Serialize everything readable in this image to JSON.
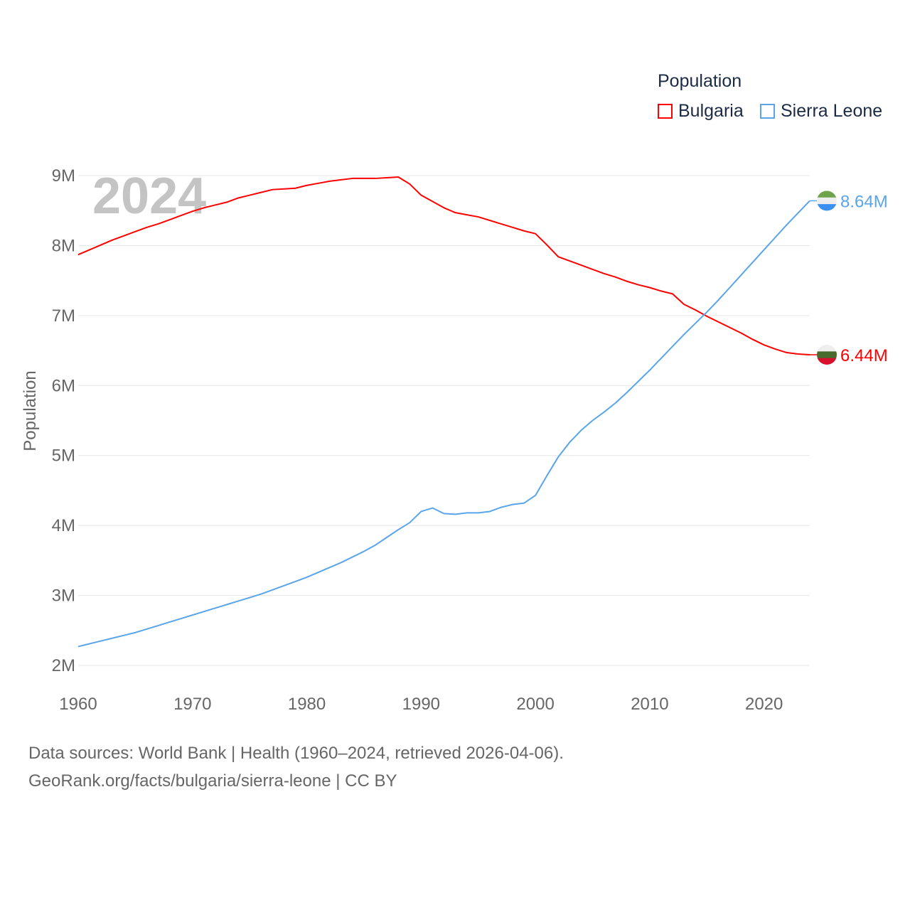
{
  "chart_data": {
    "type": "line",
    "title": "Population",
    "xlabel": "",
    "ylabel": "Population",
    "watermark_year": "2024",
    "xlim": [
      1960,
      2024
    ],
    "ylim": [
      2,
      9
    ],
    "y_unit": "millions",
    "x_ticks": [
      "1960",
      "1970",
      "1980",
      "1990",
      "2000",
      "2010",
      "2020"
    ],
    "y_ticks": [
      "2M",
      "3M",
      "4M",
      "5M",
      "6M",
      "7M",
      "8M",
      "9M"
    ],
    "grid": true,
    "legend_placement": "top-right",
    "x": [
      1960,
      1961,
      1962,
      1963,
      1964,
      1965,
      1966,
      1967,
      1968,
      1969,
      1970,
      1971,
      1972,
      1973,
      1974,
      1975,
      1976,
      1977,
      1978,
      1979,
      1980,
      1981,
      1982,
      1983,
      1984,
      1985,
      1986,
      1987,
      1988,
      1989,
      1990,
      1991,
      1992,
      1993,
      1994,
      1995,
      1996,
      1997,
      1998,
      1999,
      2000,
      2001,
      2002,
      2003,
      2004,
      2005,
      2006,
      2007,
      2008,
      2009,
      2010,
      2011,
      2012,
      2013,
      2014,
      2015,
      2016,
      2017,
      2018,
      2019,
      2020,
      2021,
      2022,
      2023,
      2024
    ],
    "series": [
      {
        "name": "Bulgaria",
        "color": "#ff0000",
        "end_label": "6.44M",
        "values": [
          7.87,
          7.94,
          8.01,
          8.08,
          8.14,
          8.2,
          8.26,
          8.31,
          8.37,
          8.43,
          8.49,
          8.54,
          8.58,
          8.62,
          8.68,
          8.72,
          8.76,
          8.8,
          8.81,
          8.82,
          8.86,
          8.89,
          8.92,
          8.94,
          8.96,
          8.96,
          8.96,
          8.97,
          8.98,
          8.88,
          8.72,
          8.63,
          8.54,
          8.47,
          8.44,
          8.41,
          8.36,
          8.31,
          8.26,
          8.21,
          8.17,
          8.01,
          7.84,
          7.78,
          7.72,
          7.66,
          7.6,
          7.55,
          7.49,
          7.44,
          7.4,
          7.35,
          7.31,
          7.16,
          7.08,
          6.99,
          6.91,
          6.83,
          6.75,
          6.66,
          6.58,
          6.52,
          6.47,
          6.45,
          6.44
        ]
      },
      {
        "name": "Sierra Leone",
        "color": "#5aa5ea",
        "end_label": "8.64M",
        "values": [
          2.27,
          2.31,
          2.35,
          2.39,
          2.43,
          2.47,
          2.52,
          2.57,
          2.62,
          2.67,
          2.72,
          2.77,
          2.82,
          2.87,
          2.92,
          2.97,
          3.02,
          3.08,
          3.14,
          3.2,
          3.26,
          3.33,
          3.4,
          3.47,
          3.55,
          3.63,
          3.72,
          3.83,
          3.94,
          4.04,
          4.2,
          4.25,
          4.17,
          4.16,
          4.18,
          4.18,
          4.2,
          4.26,
          4.3,
          4.32,
          4.43,
          4.71,
          4.98,
          5.19,
          5.36,
          5.5,
          5.62,
          5.75,
          5.9,
          6.06,
          6.22,
          6.39,
          6.56,
          6.73,
          6.89,
          7.05,
          7.22,
          7.4,
          7.58,
          7.76,
          7.94,
          8.12,
          8.3,
          8.47,
          8.64
        ]
      }
    ]
  },
  "footer": {
    "line1": "Data sources: World Bank | Health (1960–2024, retrieved 2026-04-06).",
    "line2": "GeoRank.org/facts/bulgaria/sierra-leone | CC BY"
  }
}
